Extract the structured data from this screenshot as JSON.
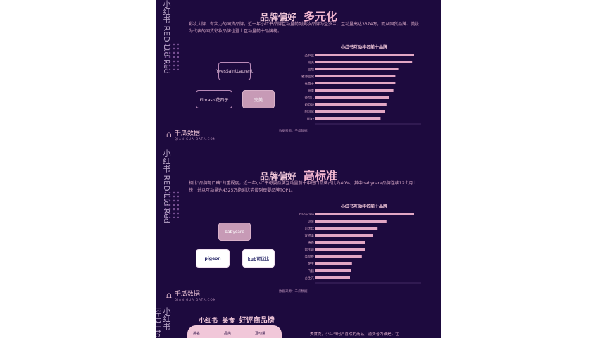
{
  "side_mark": "小红书 RED Ltd Red",
  "brand": {
    "name": "千瓜数据",
    "sub": "QIAN GUA DATA.COM",
    "glyph": "⩍"
  },
  "panel1": {
    "title_a": "品牌偏好",
    "title_b": "多元化",
    "desc": "彩妆大牌、有实力的国货品牌，近一年小红书品牌互动量前列美妆品牌为圣罗兰、互动量高达3374万，而从国货品牌、美妆为代表的国货彩妆品牌也登上互动量前十品牌榜。",
    "chart_title": "小红书互动排名前十品牌",
    "source": "数据来源：千瓜数据",
    "logos": [
      "YvesSaintLaurent",
      "Florasis花西子",
      "完美"
    ],
    "categories": [
      "圣罗兰",
      "完美",
      "兰蔻",
      "雅诗兰黛",
      "花西子",
      "迪奥",
      "香奈儿",
      "娇韵诗",
      "阿玛尼",
      "Olay"
    ],
    "values": [
      100,
      98,
      84,
      81,
      81,
      79,
      75,
      72,
      70,
      66
    ]
  },
  "panel2": {
    "title_a": "品牌偏好",
    "title_b": "高标准",
    "desc": "相比\"品牌与口碑\"的重视度，近一年小红书母婴品牌互动量前十中进口品牌占比为40%，其中babycare品牌连续12个月上榜，并以互动量达4325万绝对优势位列母婴品牌TOP1。",
    "chart_title": "小红书互动排名前十品牌",
    "source": "数据来源：千瓜数据",
    "logos": [
      "babycare",
      "pigeon",
      "kub可优比"
    ],
    "categories": [
      "babycare",
      "贝亲",
      "可优比",
      "爱他美",
      "惠氏",
      "帮宝适",
      "美赞臣",
      "花王",
      "飞鹤",
      "合生元"
    ],
    "values": [
      100,
      72,
      63,
      58,
      50,
      50,
      47,
      37,
      36,
      35
    ]
  },
  "footer": {
    "a": "小红书",
    "b": "美食",
    "c": "好评商品榜",
    "card_left": "排名",
    "card_mid": "品类",
    "card_right": "互动量",
    "right_text": "美食类，小红书用户喜欢的商品，消费者为谁是，在"
  },
  "colors": {
    "bg": "#1d0a3e",
    "bar": "#e2a6c4",
    "accent": "#f1c7d9"
  }
}
